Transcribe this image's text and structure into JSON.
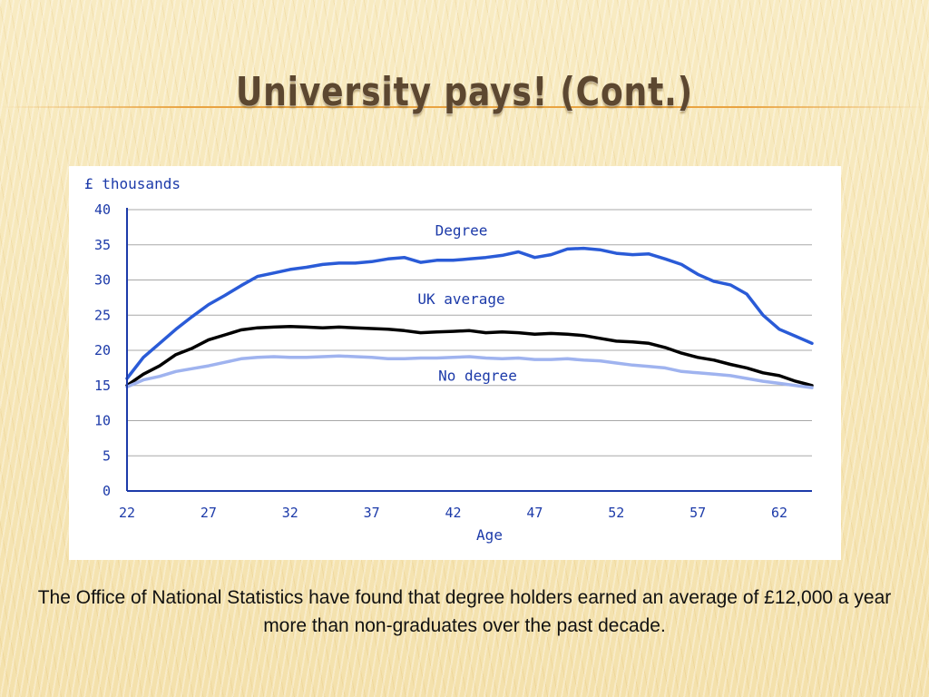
{
  "slide": {
    "title": "University pays! (Cont.)",
    "caption": "The Office of National Statistics have found that degree holders earned an average of £12,000 a year more than non-graduates over the past decade."
  },
  "chart_data": {
    "type": "line",
    "ylabel": "£ thousands",
    "xlabel": "Age",
    "xlim": [
      22,
      64
    ],
    "ylim": [
      0,
      40
    ],
    "xticks": [
      "22",
      "27",
      "32",
      "37",
      "42",
      "47",
      "52",
      "57",
      "62"
    ],
    "yticks": [
      "0",
      "5",
      "10",
      "15",
      "20",
      "25",
      "30",
      "35",
      "40"
    ],
    "grid": "horizontal",
    "x": [
      22,
      23,
      24,
      25,
      26,
      27,
      28,
      29,
      30,
      31,
      32,
      33,
      34,
      35,
      36,
      37,
      38,
      39,
      40,
      41,
      42,
      43,
      44,
      45,
      46,
      47,
      48,
      49,
      50,
      51,
      52,
      53,
      54,
      55,
      56,
      57,
      58,
      59,
      60,
      61,
      62,
      63,
      64
    ],
    "series": [
      {
        "name": "Degree",
        "color": "#2a5bd7",
        "values": [
          16,
          19,
          21,
          23,
          24.8,
          26.5,
          27.8,
          29.2,
          30.5,
          31,
          31.5,
          31.8,
          32.2,
          32.4,
          32.4,
          32.6,
          33,
          33.2,
          32.5,
          32.8,
          32.8,
          33,
          33.2,
          33.5,
          34,
          33.2,
          33.6,
          34.4,
          34.5,
          34.3,
          33.8,
          33.6,
          33.7,
          33,
          32.2,
          30.8,
          29.8,
          29.3,
          28,
          25,
          23,
          22,
          21
        ]
      },
      {
        "name": "UK average",
        "color": "#000000",
        "values": [
          15,
          16.6,
          17.8,
          19.4,
          20.3,
          21.5,
          22.2,
          22.9,
          23.2,
          23.3,
          23.4,
          23.3,
          23.2,
          23.3,
          23.2,
          23.1,
          23,
          22.8,
          22.5,
          22.6,
          22.7,
          22.8,
          22.5,
          22.6,
          22.5,
          22.3,
          22.4,
          22.3,
          22.1,
          21.7,
          21.3,
          21.2,
          21,
          20.4,
          19.6,
          19,
          18.6,
          18,
          17.5,
          16.8,
          16.4,
          15.6,
          15
        ]
      },
      {
        "name": "No degree",
        "color": "#9fb3ef",
        "values": [
          14.8,
          15.8,
          16.3,
          17,
          17.4,
          17.8,
          18.3,
          18.8,
          19,
          19.1,
          19,
          19,
          19.1,
          19.2,
          19.1,
          19,
          18.8,
          18.8,
          18.9,
          18.9,
          19,
          19.1,
          18.9,
          18.8,
          18.9,
          18.7,
          18.7,
          18.8,
          18.6,
          18.5,
          18.2,
          17.9,
          17.7,
          17.5,
          17,
          16.8,
          16.6,
          16.4,
          16,
          15.6,
          15.3,
          15,
          14.7
        ]
      }
    ],
    "annotations": [
      {
        "text": "Degree",
        "x": 42.5,
        "y": 37
      },
      {
        "text": "UK average",
        "x": 42.5,
        "y": 27.2
      },
      {
        "text": "No degree",
        "x": 43.5,
        "y": 16.3
      }
    ]
  }
}
